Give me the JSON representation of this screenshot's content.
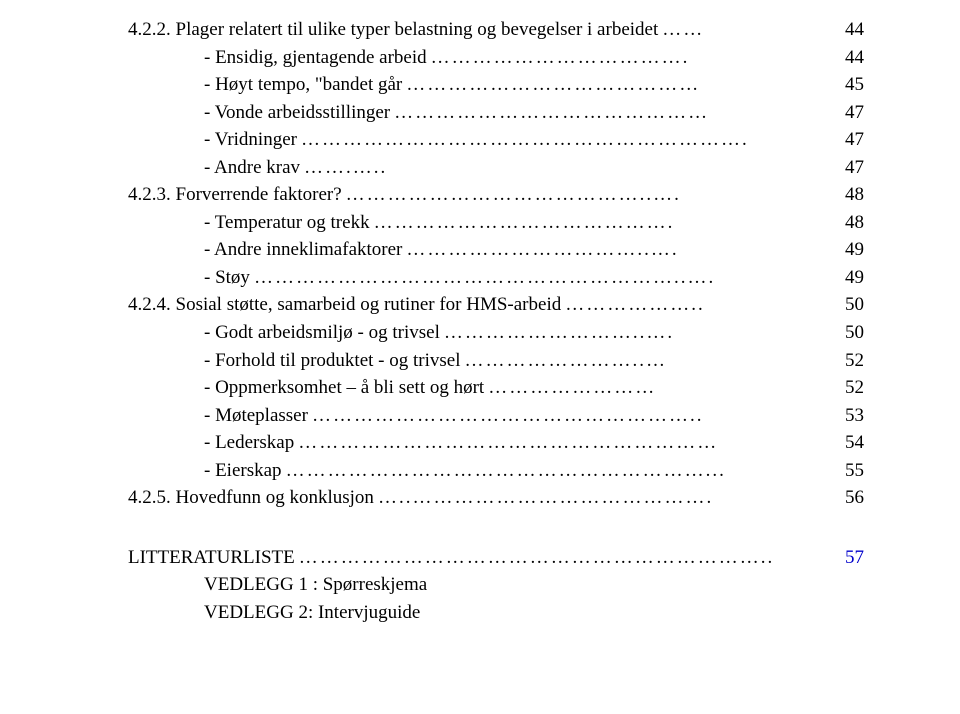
{
  "entries": [
    {
      "indent": 0,
      "text": "4.2.2. Plager relatert til ulike typer belastning og bevegelser i arbeidet",
      "leader": "……",
      "page": "44"
    },
    {
      "indent": 1,
      "text": "-   Ensidig, gjentagende arbeid",
      "leader": "……………………………….",
      "page": "44"
    },
    {
      "indent": 1,
      "text": "-   Høyt tempo, \"bandet går",
      "leader": "……………………………………",
      "page": "45"
    },
    {
      "indent": 1,
      "text": "-   Vonde arbeidsstillinger",
      "leader": "………………………………………",
      "page": "47"
    },
    {
      "indent": 1,
      "text": "-   Vridninger",
      "leader": "……………………………………………………….",
      "page": "47"
    },
    {
      "indent": 1,
      "text": "-   Andre krav",
      "leader": "…….…..",
      "page": "47"
    },
    {
      "indent": 0,
      "text": "4.2.3. Forverrende faktorer?",
      "leader": "……………………………………..….",
      "page": "48"
    },
    {
      "indent": 1,
      "text": "-   Temperatur og trekk",
      "leader": "…………………………………….",
      "page": "48"
    },
    {
      "indent": 1,
      "text": "-   Andre inneklimafaktorer",
      "leader": "……………………………..….",
      "page": "49"
    },
    {
      "indent": 1,
      "text": "-   Støy",
      "leader": "……………………………………………………..….",
      "page": "49"
    },
    {
      "indent": 0,
      "text": "4.2.4. Sosial støtte, samarbeid og rutiner for HMS-arbeid",
      "leader": "………………..",
      "page": "50"
    },
    {
      "indent": 1,
      "text": "-   Godt arbeidsmiljø  - og trivsel",
      "leader": "………………………..….",
      "page": "50"
    },
    {
      "indent": 1,
      "text": "-   Forhold til produktet - og trivsel",
      "leader": "……………………..…",
      "page": "52"
    },
    {
      "indent": 1,
      "text": "-   Oppmerksomhet – å bli sett og hørt",
      "leader": "……………………",
      "page": "52"
    },
    {
      "indent": 1,
      "text": "-   Møteplasser",
      "leader": "………………………………………………..",
      "page": "53"
    },
    {
      "indent": 1,
      "text": "-   Lederskap",
      "leader": "……………………………………………………",
      "page": "54"
    },
    {
      "indent": 1,
      "text": "-   Eierskap",
      "leader": "……………………………………………………...",
      "page": "55"
    },
    {
      "indent": 0,
      "text": "4.2.5. Hovedfunn og konklusjon",
      "leader": "…..…………………………………….",
      "page": "56"
    }
  ],
  "literature": {
    "title": "LITTERATURLISTE",
    "leader": "…………………………………………………………..",
    "page": "57",
    "page_color": "#0000cc",
    "appendices": [
      "VEDLEGG 1 : Spørreskjema",
      "VEDLEGG 2:  Intervjuguide"
    ]
  },
  "style": {
    "font_family": "Times New Roman",
    "font_size_pt": 14,
    "text_color": "#000000",
    "background_color": "#ffffff",
    "link_color": "#0000cc"
  }
}
